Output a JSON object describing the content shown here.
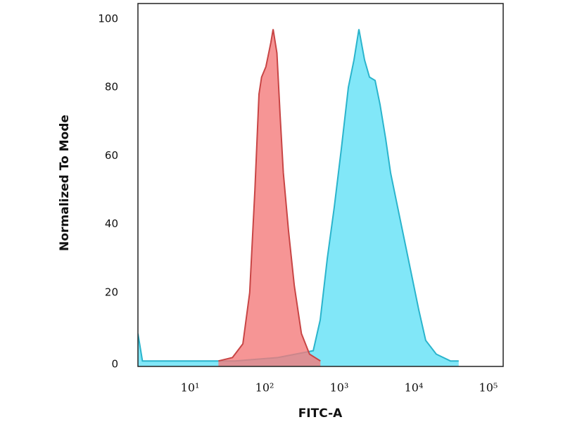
{
  "chart_data": {
    "type": "area",
    "xlabel": "FITC-A",
    "ylabel": "Normalized To Mode",
    "xscale": "log",
    "xlim": [
      2,
      158000
    ],
    "ylim": [
      -1.6,
      104.5
    ],
    "xticks": [
      {
        "value": 10,
        "label": "10¹"
      },
      {
        "value": 100,
        "label": "10²"
      },
      {
        "value": 1000,
        "label": "10³"
      },
      {
        "value": 10000,
        "label": "10⁴"
      },
      {
        "value": 100000,
        "label": "10⁵"
      }
    ],
    "yticks": [
      0,
      20,
      40,
      60,
      80,
      100
    ],
    "series": [
      {
        "color": "#2ab4cc",
        "fill": "#7ae6f8",
        "x": [
          2,
          2.3,
          40,
          150,
          260,
          448,
          556,
          692,
          859,
          1067,
          1327,
          1578,
          1837,
          2186,
          2546,
          3027,
          3524,
          4195,
          4887,
          6069,
          7541,
          9376,
          11640,
          14450,
          20030,
          30970,
          40000
        ],
        "values": [
          8,
          0,
          0,
          1,
          2,
          3,
          12,
          30,
          45,
          62,
          80,
          88,
          97,
          88,
          83,
          82,
          75,
          65,
          55,
          45,
          35,
          25,
          15,
          6,
          2,
          0,
          0
        ]
      },
      {
        "color": "#c84545",
        "fill": "#f47a7a",
        "x": [
          24,
          37,
          51,
          63,
          74,
          84,
          91,
          104,
          121,
          130,
          146,
          161,
          178,
          209,
          250,
          311,
          400,
          560
        ],
        "values": [
          0,
          1,
          5,
          20,
          50,
          78,
          83,
          86,
          93,
          97,
          90,
          72,
          55,
          38,
          22,
          8,
          2,
          0
        ]
      }
    ]
  }
}
